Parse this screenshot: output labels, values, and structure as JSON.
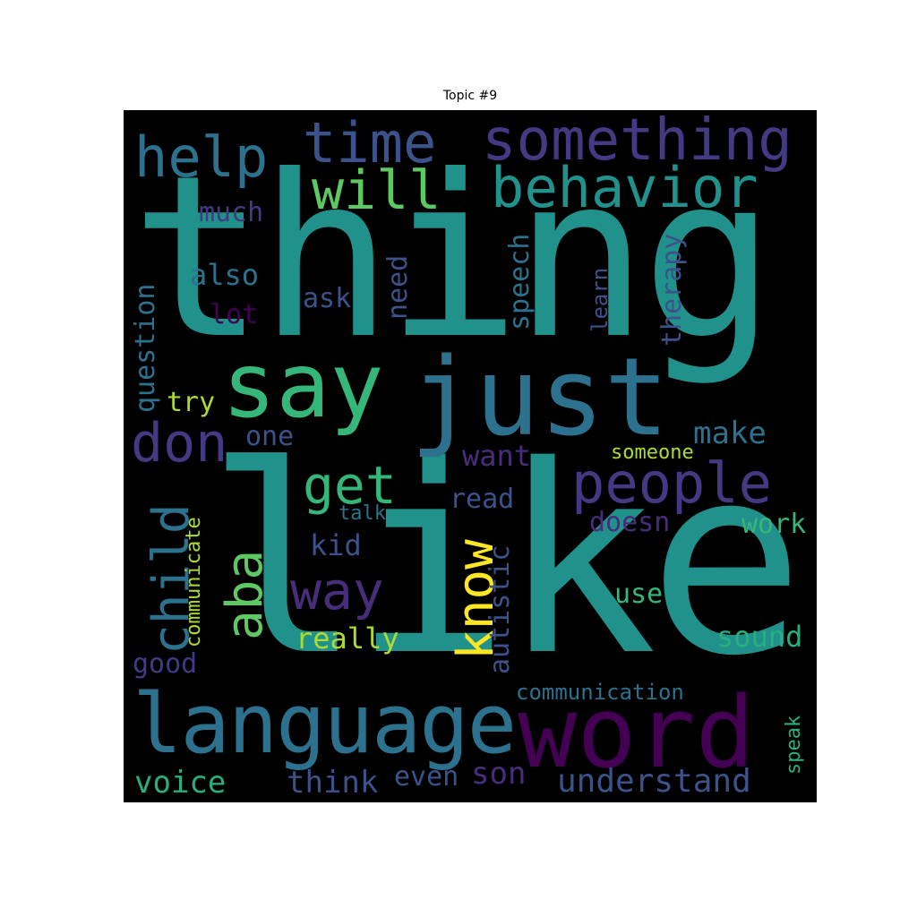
{
  "title": "Topic #9",
  "words": {
    "thing": "thing",
    "like": "like",
    "just": "just",
    "say": "say",
    "language": "language",
    "word": "word",
    "something": "something",
    "behavior": "behavior",
    "time": "time",
    "help": "help",
    "will": "will",
    "don": "don",
    "people": "people",
    "get": "get",
    "child": "child",
    "aba": "aba",
    "know": "know",
    "way": "way",
    "much": "much",
    "also": "also",
    "lot": "lot",
    "ask": "ask",
    "need": "need",
    "speech": "speech",
    "learn": "learn",
    "therapy": "therapy",
    "question": "question",
    "try": "try",
    "one": "one",
    "make": "make",
    "want": "want",
    "someone": "someone",
    "read": "read",
    "doesn": "doesn",
    "communicate": "communicate",
    "talk": "talk",
    "kid": "kid",
    "autistic": "autistic",
    "work": "work",
    "use": "use",
    "really": "really",
    "sound": "sound",
    "good": "good",
    "communication": "communication",
    "speak": "speak",
    "voice": "voice",
    "think": "think",
    "even": "even",
    "son": "son",
    "understand": "understand"
  },
  "colors": {
    "teal": "#21918c",
    "teal_dark": "#2c728e",
    "blue": "#3b528b",
    "indigo": "#443983",
    "purple_dark": "#440154",
    "purple": "#472d7b",
    "green": "#5ec962",
    "green_light": "#35b779",
    "yellow_green": "#addc30",
    "yellow": "#fde725",
    "sea": "#28ae80"
  }
}
